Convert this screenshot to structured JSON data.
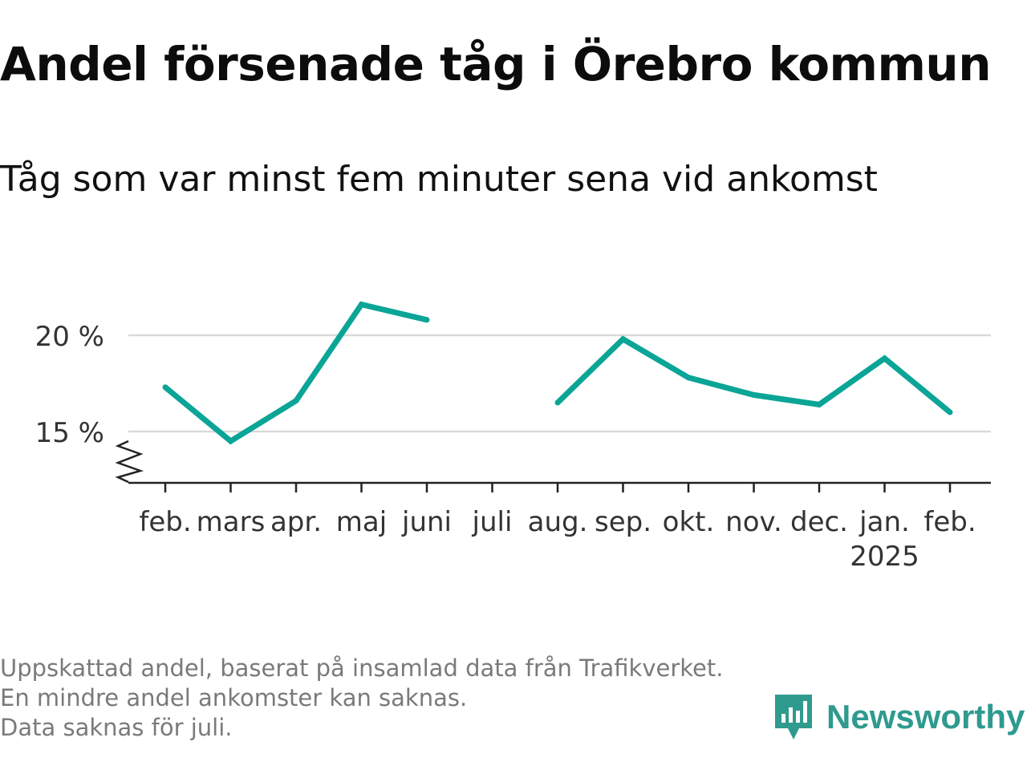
{
  "title": "Andel försenade tåg i Örebro kommun",
  "subtitle": "Tåg som var minst fem minuter sena vid ankomst",
  "footer": {
    "note1": "Uppskattad andel, baserat på insamlad data från Trafikverket. En mindre andel ankomster kan saknas.",
    "note2": "Data saknas för juli."
  },
  "brand": {
    "name": "Newsworthy",
    "icon": "newsworthy-logo-icon"
  },
  "colors": {
    "line": "#0aa596",
    "grid": "#d9d9d9",
    "axis": "#222222",
    "brand": "#2f9a8e"
  },
  "chart_data": {
    "type": "line",
    "title": "Andel försenade tåg i Örebro kommun",
    "subtitle": "Tåg som var minst fem minuter sena vid ankomst",
    "categories": [
      "feb.",
      "mars",
      "apr.",
      "maj",
      "juni",
      "juli",
      "aug.",
      "sep.",
      "okt.",
      "nov.",
      "dec.",
      "jan.",
      "feb."
    ],
    "year_label": "2025",
    "year_label_under": "jan.",
    "series": [
      {
        "values": [
          17.3,
          14.5,
          16.6,
          21.6,
          20.8,
          null,
          16.5,
          19.8,
          17.8,
          16.9,
          16.4,
          18.8,
          16.0
        ]
      }
    ],
    "y_ticks": [
      15,
      20
    ],
    "y_tick_suffix": " %",
    "ylim": [
      12.5,
      23
    ],
    "y_axis_break": true,
    "grid": true,
    "legend": "none"
  }
}
